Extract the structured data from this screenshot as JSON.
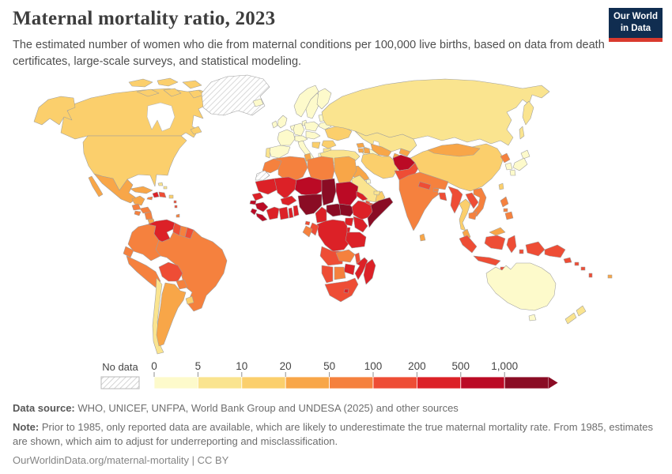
{
  "header": {
    "title": "Maternal mortality ratio, 2023",
    "subtitle": "The estimated number of women who die from maternal conditions per 100,000 live births, based on data from death certificates, large-scale surveys, and statistical modeling.",
    "logo_line1": "Our World",
    "logo_line2": "in Data",
    "logo_bg": "#102d50",
    "logo_accent": "#d93a2e"
  },
  "legend": {
    "no_data_label": "No data",
    "tick_labels": [
      "0",
      "5",
      "10",
      "20",
      "50",
      "100",
      "200",
      "500",
      "1,000"
    ],
    "bin_buckets": [
      "0-5",
      "5-10",
      "10-20",
      "20-50",
      "50-100",
      "100-200",
      "200-500",
      "500-1000",
      "1000+"
    ]
  },
  "chart_data": {
    "type": "heatmap",
    "subtype": "choropleth-world-map",
    "title": "Maternal mortality ratio, 2023",
    "unit": "maternal deaths per 100,000 live births",
    "legend_bins": [
      "0-5",
      "5-10",
      "10-20",
      "20-50",
      "50-100",
      "100-200",
      "200-500",
      "500-1000",
      "1000+",
      "no-data"
    ],
    "color_scale": {
      "0-5": "#fdfacb",
      "5-10": "#fae48f",
      "10-20": "#fbcf6c",
      "20-50": "#f8a648",
      "50-100": "#f5813e",
      "100-200": "#ee4d35",
      "200-500": "#dc2127",
      "500-1000": "#bb0a25",
      "1000+": "#8a0c24",
      "no-data": "hatched"
    },
    "border_color": "#9e9e9e",
    "regions": {
      "canada": "10-20",
      "usa": "10-20",
      "greenland": "no-data",
      "iceland": "0-5",
      "mexico": "20-50",
      "guatemala": "50-100",
      "el-salvador": "50-100",
      "honduras": "50-100",
      "nicaragua": "50-100",
      "costa-rica": "20-50",
      "panama": "20-50",
      "cuba": "20-50",
      "haiti": "200-500",
      "dominican-republic": "100-200",
      "jamaica": "50-100",
      "puerto-rico": "10-20",
      "bahamas": "5-10",
      "trinidad-and-tobago": "50-100",
      "lesser-antilles": "100-200",
      "colombia": "50-100",
      "venezuela": "200-500",
      "guyana": "100-200",
      "suriname": "50-100",
      "french-guiana": "100-200",
      "ecuador": "50-100",
      "peru": "50-100",
      "brazil": "50-100",
      "bolivia": "100-200",
      "paraguay": "50-100",
      "chile": "5-10",
      "argentina": "20-50",
      "uruguay": "10-20",
      "norway": "0-5",
      "sweden": "0-5",
      "finland": "0-5",
      "denmark": "0-5",
      "united-kingdom": "0-5",
      "ireland": "0-5",
      "portugal": "5-10",
      "spain": "0-5",
      "france": "0-5",
      "benelux": "0-5",
      "germany": "0-5",
      "alpine-states": "0-5",
      "italy": "0-5",
      "poland": "0-5",
      "central-europe": "0-5",
      "baltics": "0-5",
      "belarus": "0-5",
      "ukraine": "10-20",
      "romania": "10-20",
      "balkans": "10-20",
      "bulgaria": "5-10",
      "greece": "0-5",
      "russia": "5-10",
      "kazakhstan": "5-10",
      "uzbekistan": "20-50",
      "turkmenistan": "0-5",
      "kyrgyzstan": "20-50",
      "tajikistan": "20-50",
      "georgia": "20-50",
      "armenia": "20-50",
      "azerbaijan": "20-50",
      "turkey": "5-10",
      "syria": "20-50",
      "lebanon-israel": "0-5",
      "jordan": "0-5",
      "iraq": "20-50",
      "iran": "10-20",
      "kuwait": "0-5",
      "saudi-arabia": "5-10",
      "yemen": "100-200",
      "oman": "10-20",
      "uae": "5-10",
      "afghanistan": "500-1000",
      "pakistan": "100-200",
      "india": "50-100",
      "nepal": "100-200",
      "bhutan": "50-100",
      "bangladesh": "100-200",
      "sri-lanka": "20-50",
      "china": "10-20",
      "mongolia": "20-50",
      "north-korea": "50-100",
      "south-korea": "0-5",
      "japan": "0-5",
      "taiwan": "10-20",
      "myanmar": "100-200",
      "thailand": "10-20",
      "laos": "100-200",
      "vietnam": "50-100",
      "cambodia": "50-100",
      "malaysia": "20-50",
      "indonesia": "100-200",
      "philippines": "50-100",
      "papua-new-guinea": "100-200",
      "timor-leste": "200-500",
      "solomon-islands": "100-200",
      "vanuatu": "100-200",
      "fiji": "20-50",
      "australia": "0-5",
      "new-zealand": "5-10",
      "morocco": "50-100",
      "western-sahara": "no-data",
      "algeria": "50-100",
      "tunisia": "20-50",
      "libya": "50-100",
      "egypt": "20-50",
      "mauritania": "200-500",
      "senegal": "200-500",
      "guinea-bissau": "500-1000",
      "guinea": "500-1000",
      "sierra-leone": "500-1000",
      "liberia": "500-1000",
      "cote-divoire": "200-500",
      "ghana": "200-500",
      "togo": "200-500",
      "benin": "200-500",
      "burkina-faso": "200-500",
      "mali": "200-500",
      "niger": "500-1000",
      "nigeria": "1000+",
      "chad": "1000+",
      "cameroon": "200-500",
      "central-african-republic": "1000+",
      "sudan": "500-1000",
      "south-sudan": "1000+",
      "eritrea": "200-500",
      "djibouti": "100-200",
      "ethiopia": "200-500",
      "somalia": "1000+",
      "kenya": "200-500",
      "uganda": "200-500",
      "rwanda-burundi": "200-500",
      "drc": "200-500",
      "congo": "100-200",
      "gabon": "50-100",
      "equatorial-guinea": "100-200",
      "angola": "100-200",
      "zambia": "50-100",
      "malawi": "100-200",
      "tanzania": "200-500",
      "mozambique": "200-500",
      "zimbabwe": "200-500",
      "botswana": "50-100",
      "namibia": "100-200",
      "south-africa": "100-200",
      "lesotho": "200-500",
      "madagascar": "200-500"
    }
  },
  "footer": {
    "source_label": "Data source:",
    "source_text": "WHO, UNICEF, UNFPA, World Bank Group and UNDESA (2025) and other sources",
    "note_label": "Note:",
    "note_text": "Prior to 1985, only reported data are available, which are likely to underestimate the true maternal mortality rate. From 1985, estimates are shown, which aim to adjust for underreporting and misclassification.",
    "url_line": "OurWorldinData.org/maternal-mortality | CC BY"
  }
}
